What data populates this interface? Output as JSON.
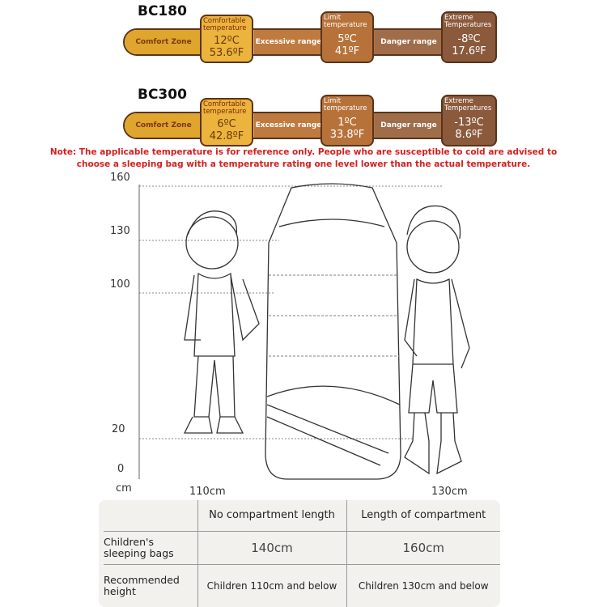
{
  "models": [
    {
      "name": "BC180",
      "comfort_zone": "Comfort Zone",
      "comfortable_caption": "Comfortable temperature",
      "comfortable_c": "12ºC",
      "comfortable_f": "53.6ºF",
      "excessive": "Excessive range",
      "limit_caption": "Limit temperature",
      "limit_c": "5ºC",
      "limit_f": "41ºF",
      "danger": "Danger range",
      "extreme_caption": "Extreme Temperatures",
      "extreme_c": "-8ºC",
      "extreme_f": "17.6ºF"
    },
    {
      "name": "BC300",
      "comfort_zone": "Comfort Zone",
      "comfortable_caption": "Comfortable temperature",
      "comfortable_c": "6ºC",
      "comfortable_f": "42.8ºF",
      "excessive": "Excessive range",
      "limit_caption": "Limit temperature",
      "limit_c": "1ºC",
      "limit_f": "33.8ºF",
      "danger": "Danger range",
      "extreme_caption": "Extreme Temperatures",
      "extreme_c": "-13ºC",
      "extreme_f": "8.6ºF"
    }
  ],
  "note_line1": "Note: The applicable temperature is for reference only. People who are susceptible to cold are advised to",
  "note_line2": "choose a sleeping bag with a temperature rating one level lower than the actual temperature.",
  "scale": {
    "ticks": [
      "160",
      "130",
      "100",
      "20",
      "0"
    ],
    "unit": "cm",
    "left_child": "110cm",
    "right_child": "130cm"
  },
  "colors": {
    "comfort_zone": "#E0A52C",
    "comfortable": "#ECB43C",
    "excessive": "#BF7A3F",
    "limit": "#B7723A",
    "danger": "#A06D4B",
    "extreme": "#8B593C",
    "note": "#D42020"
  },
  "table": {
    "headers": [
      "",
      "No compartment length",
      "Length of compartment"
    ],
    "rows": [
      [
        "Children's sleeping bags",
        "140cm",
        "160cm"
      ],
      [
        "Recommended height",
        "Children 110cm and below",
        "Children 130cm and below"
      ]
    ]
  }
}
